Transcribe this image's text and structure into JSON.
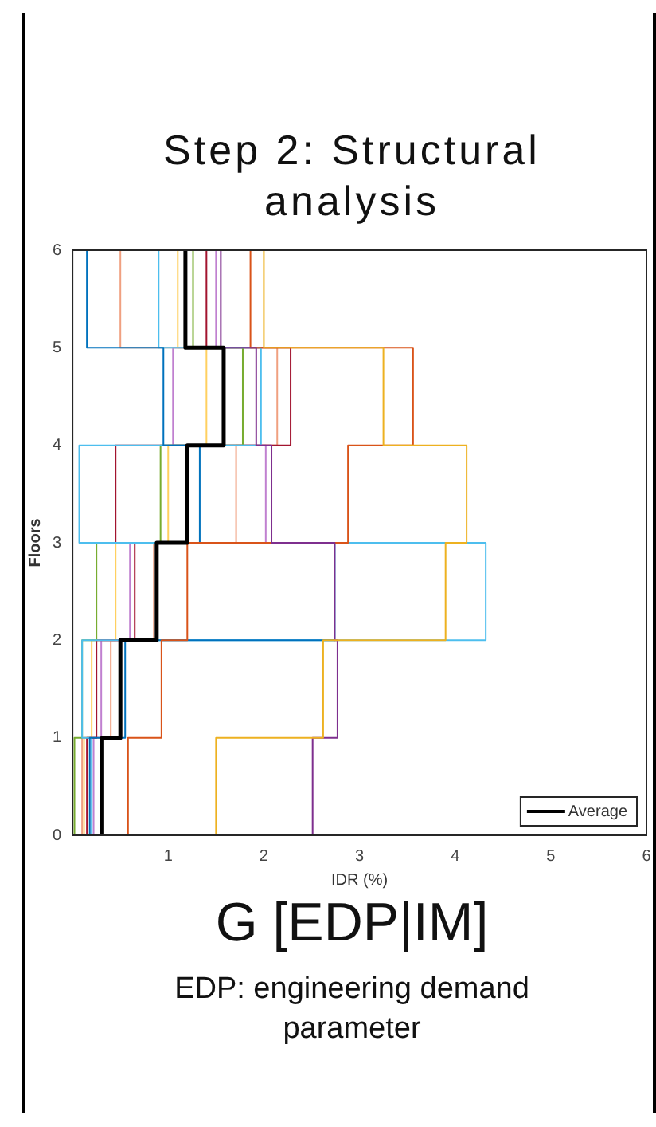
{
  "chart_data": {
    "type": "line",
    "title": "Step 2: Structural analysis",
    "xlabel": "IDR (%)",
    "ylabel": "Floors",
    "xlim": [
      0,
      6
    ],
    "ylim": [
      0,
      6
    ],
    "xticks": [
      1,
      2,
      3,
      4,
      5,
      6
    ],
    "yticks": [
      0,
      1,
      2,
      3,
      4,
      5,
      6
    ],
    "grid": false,
    "legend": "bottom right",
    "marker": "none",
    "line_style": "solid",
    "annotations": [
      "G [EDP|IM]",
      "EDP: engineering demand parameter"
    ],
    "series": [
      {
        "color": "#edb120",
        "x": [
          1.5,
          1.5,
          2.62,
          2.62,
          3.9,
          3.9,
          4.12,
          4.12,
          3.25,
          3.25,
          2.0,
          2.0
        ],
        "values": [
          0,
          1,
          1,
          2,
          2,
          3,
          3,
          4,
          4,
          5,
          5,
          6
        ]
      },
      {
        "color": "#7e2f8e",
        "x": [
          2.51,
          2.51,
          2.77,
          2.77,
          2.74,
          2.74,
          2.08,
          2.08,
          1.92,
          1.92,
          1.55,
          1.55
        ],
        "values": [
          0,
          1,
          1,
          2,
          2,
          3,
          3,
          4,
          4,
          5,
          5,
          6
        ]
      },
      {
        "color": "#d95319",
        "x": [
          0.58,
          0.58,
          0.93,
          0.93,
          1.2,
          1.2,
          2.88,
          2.88,
          3.56,
          3.56,
          1.86,
          1.86
        ],
        "values": [
          0,
          1,
          1,
          2,
          2,
          3,
          3,
          4,
          4,
          5,
          5,
          6
        ]
      },
      {
        "color": "#0072bd",
        "x": [
          0.18,
          0.18,
          0.55,
          0.55,
          2.74,
          2.74,
          1.33,
          1.33,
          0.95,
          0.95,
          0.15,
          0.15
        ],
        "values": [
          0,
          1,
          1,
          2,
          2,
          3,
          3,
          4,
          4,
          5,
          5,
          6
        ]
      },
      {
        "color": "#4dbeee",
        "x": [
          0.2,
          0.2,
          0.1,
          0.1,
          4.32,
          4.32,
          0.07,
          0.07,
          1.97,
          1.97,
          0.9,
          0.9
        ],
        "values": [
          0,
          1,
          1,
          2,
          2,
          3,
          3,
          4,
          4,
          5,
          5,
          6
        ]
      },
      {
        "color": "#77ac30",
        "x": [
          0.02,
          0.02,
          0.1,
          0.1,
          0.25,
          0.25,
          0.92,
          0.92,
          1.78,
          1.78,
          1.26,
          1.26
        ],
        "values": [
          0,
          1,
          1,
          2,
          2,
          3,
          3,
          4,
          4,
          5,
          5,
          6
        ]
      },
      {
        "color": "#a2142f",
        "x": [
          0.15,
          0.15,
          0.25,
          0.25,
          0.65,
          0.65,
          0.45,
          0.45,
          2.28,
          2.28,
          1.4,
          1.4
        ],
        "values": [
          0,
          1,
          1,
          2,
          2,
          3,
          3,
          4,
          4,
          5,
          5,
          6
        ]
      },
      {
        "color": "#f0a080",
        "x": [
          0.1,
          0.1,
          0.4,
          0.4,
          0.85,
          0.85,
          1.71,
          1.71,
          2.14,
          2.14,
          0.5,
          0.5
        ],
        "values": [
          0,
          1,
          1,
          2,
          2,
          3,
          3,
          4,
          4,
          5,
          5,
          6
        ]
      },
      {
        "color": "#c080d0",
        "x": [
          0.22,
          0.22,
          0.3,
          0.3,
          0.6,
          0.6,
          2.02,
          2.02,
          1.05,
          1.05,
          1.5,
          1.5
        ],
        "values": [
          0,
          1,
          1,
          2,
          2,
          3,
          3,
          4,
          4,
          5,
          5,
          6
        ]
      },
      {
        "color": "#ffd060",
        "x": [
          0.12,
          0.12,
          0.2,
          0.2,
          0.45,
          0.45,
          1.0,
          1.0,
          1.4,
          1.4,
          1.1,
          1.1
        ],
        "values": [
          0,
          1,
          1,
          2,
          2,
          3,
          3,
          4,
          4,
          5,
          5,
          6
        ]
      },
      {
        "name": "Average",
        "color": "#000000",
        "x": [
          0.31,
          0.31,
          0.5,
          0.5,
          0.88,
          0.88,
          1.2,
          1.2,
          1.58,
          1.58,
          1.18,
          1.18
        ],
        "values": [
          0,
          1,
          1,
          2,
          2,
          3,
          3,
          4,
          4,
          5,
          5,
          6
        ]
      }
    ]
  }
}
